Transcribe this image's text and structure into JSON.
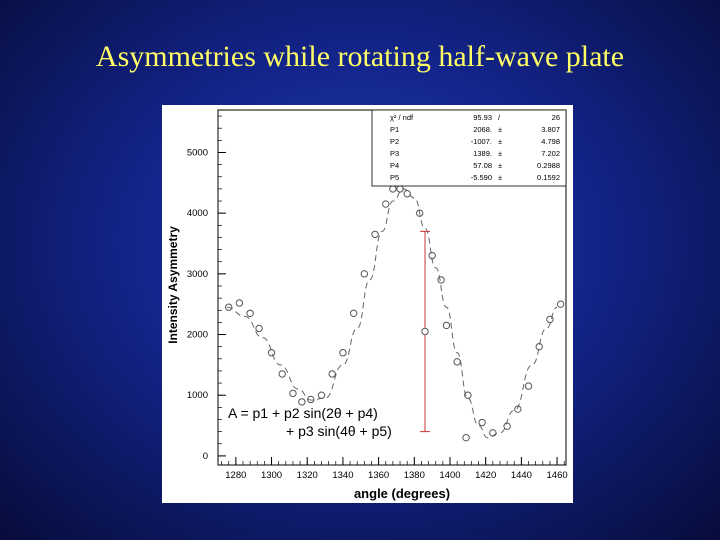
{
  "slide": {
    "title": "Asymmetries while rotating half-wave plate"
  },
  "chart_data": {
    "type": "scatter",
    "xlabel": "angle (degrees)",
    "ylabel": "Intensity Asymmetry",
    "xlim": [
      1270,
      1465
    ],
    "ylim": [
      -150,
      5700
    ],
    "xticks": [
      1280,
      1300,
      1320,
      1340,
      1360,
      1380,
      1400,
      1420,
      1440,
      1460
    ],
    "yticks": [
      0,
      1000,
      2000,
      3000,
      4000,
      5000
    ],
    "grid": false,
    "stats_box": {
      "rows": [
        {
          "name": "χ² / ndf",
          "value": "95.93",
          "sep": "/",
          "error": "26"
        },
        {
          "name": "P1",
          "value": "2068.",
          "sep": "±",
          "error": "3.807"
        },
        {
          "name": "P2",
          "value": "-1007.",
          "sep": "±",
          "error": "4.798"
        },
        {
          "name": "P3",
          "value": "1389.",
          "sep": "±",
          "error": "7.202"
        },
        {
          "name": "P4",
          "value": "57.08",
          "sep": "±",
          "error": "0.2988"
        },
        {
          "name": "P5",
          "value": "-5.590",
          "sep": "±",
          "error": "0.1592"
        }
      ]
    },
    "fit_formula": {
      "line1": "A = p1 +  p2 sin(2θ + p4)",
      "line2": "+ p3 sin(4θ + p5)"
    },
    "fit_curve": {
      "style": "dashed",
      "points": [
        [
          1275,
          2450
        ],
        [
          1285,
          2300
        ],
        [
          1295,
          1950
        ],
        [
          1305,
          1500
        ],
        [
          1315,
          1100
        ],
        [
          1322,
          920
        ],
        [
          1330,
          950
        ],
        [
          1340,
          1500
        ],
        [
          1348,
          2100
        ],
        [
          1355,
          2900
        ],
        [
          1362,
          3700
        ],
        [
          1368,
          4200
        ],
        [
          1374,
          4400
        ],
        [
          1380,
          4250
        ],
        [
          1386,
          3750
        ],
        [
          1392,
          3100
        ],
        [
          1398,
          2450
        ],
        [
          1404,
          1700
        ],
        [
          1410,
          950
        ],
        [
          1416,
          500
        ],
        [
          1421,
          300
        ],
        [
          1428,
          380
        ],
        [
          1436,
          750
        ],
        [
          1446,
          1500
        ],
        [
          1454,
          2100
        ],
        [
          1460,
          2450
        ]
      ]
    },
    "data_points": [
      {
        "x": 1276,
        "y": 2450
      },
      {
        "x": 1282,
        "y": 2520
      },
      {
        "x": 1288,
        "y": 2350
      },
      {
        "x": 1293,
        "y": 2100
      },
      {
        "x": 1300,
        "y": 1700
      },
      {
        "x": 1306,
        "y": 1350
      },
      {
        "x": 1312,
        "y": 1030
      },
      {
        "x": 1317,
        "y": 890
      },
      {
        "x": 1322,
        "y": 930
      },
      {
        "x": 1328,
        "y": 1000
      },
      {
        "x": 1334,
        "y": 1350
      },
      {
        "x": 1340,
        "y": 1700
      },
      {
        "x": 1346,
        "y": 2350
      },
      {
        "x": 1352,
        "y": 3000
      },
      {
        "x": 1358,
        "y": 3650
      },
      {
        "x": 1364,
        "y": 4150
      },
      {
        "x": 1368,
        "y": 4400
      },
      {
        "x": 1372,
        "y": 4400
      },
      {
        "x": 1376,
        "y": 4320
      },
      {
        "x": 1383,
        "y": 4000
      },
      {
        "x": 1390,
        "y": 3300
      },
      {
        "x": 1395,
        "y": 2900
      },
      {
        "x": 1398,
        "y": 2150
      },
      {
        "x": 1404,
        "y": 1550
      },
      {
        "x": 1410,
        "y": 1000
      },
      {
        "x": 1418,
        "y": 550
      },
      {
        "x": 1424,
        "y": 380
      },
      {
        "x": 1432,
        "y": 490
      },
      {
        "x": 1438,
        "y": 770
      },
      {
        "x": 1444,
        "y": 1150
      },
      {
        "x": 1450,
        "y": 1800
      },
      {
        "x": 1456,
        "y": 2250
      },
      {
        "x": 1462,
        "y": 2500
      }
    ],
    "outliers": [
      {
        "x": 1386,
        "y": 2050,
        "error": 1650
      },
      {
        "x": 1409,
        "y": 300
      }
    ],
    "colors": {
      "errorbar": "#cc3333",
      "markers": "#555555",
      "curve": "#666666"
    }
  }
}
